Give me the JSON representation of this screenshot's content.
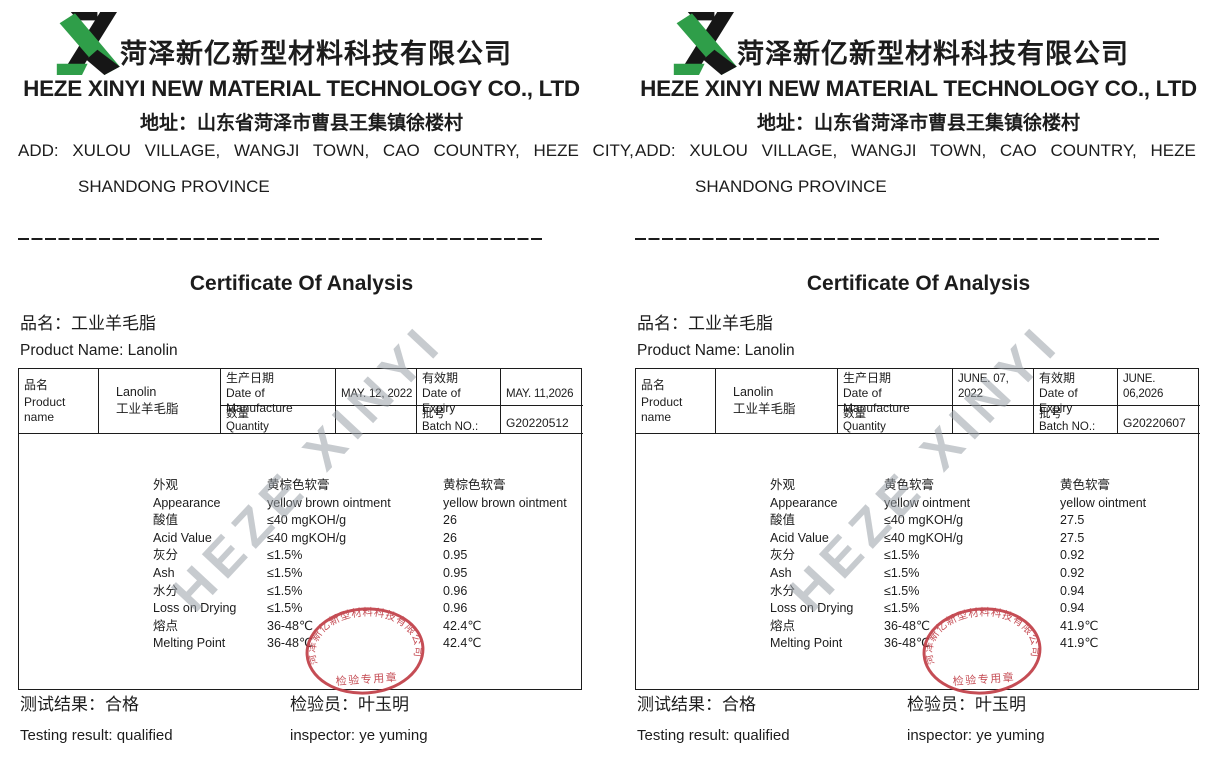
{
  "colors": {
    "ink": "#1c1c1c",
    "stamp_red": "#bf3a43",
    "logo_green": "#2f9e49",
    "logo_black": "#161616",
    "watermark_gray": "#9ba1a8"
  },
  "watermark_text": "HEZE XINYI",
  "stamp": {
    "ring_text": "菏泽新亿新型材料科技有限公司",
    "bottom_text": "检验专用章"
  },
  "certs": [
    {
      "header": {
        "company_cn": "菏泽新亿新型材料科技有限公司",
        "company_en": "HEZE XINYI NEW MATERIAL TECHNOLOGY CO., LTD",
        "address_cn": "地址：山东省菏泽市曹县王集镇徐楼村",
        "address_en1": "ADD: XULOU VILLAGE, WANGJI TOWN, CAO COUNTRY, HEZE CITY,",
        "address_en2": "SHANDONG PROVINCE"
      },
      "title": "Certificate Of Analysis",
      "product_line_cn": "品名：工业羊毛脂",
      "product_line_en": "Product Name:  Lanolin",
      "info": {
        "name_cn": "品名",
        "name_en": "Product name",
        "product_value_en": "Lanolin",
        "product_value_cn": "工业羊毛脂",
        "mfg_cn": "生产日期",
        "mfg_en": "Date of Manufacture",
        "mfg_value": "MAY. 12, 2022",
        "expiry_cn": "有效期",
        "expiry_en": "Date of Expiry",
        "expiry_value": "MAY. 11,2026",
        "qty_cn": "数量",
        "qty_en": "Quantity",
        "qty_value": "",
        "batch_cn": "批号",
        "batch_en": "Batch NO.:",
        "batch_value": "G20220512"
      },
      "results": [
        {
          "label": "外观",
          "spec": "黄棕色软膏",
          "value": "黄棕色软膏"
        },
        {
          "label": "Appearance",
          "spec": "yellow brown ointment",
          "value": "yellow brown ointment"
        },
        {
          "label": "酸值",
          "spec": "≤40 mgKOH/g",
          "value": "26"
        },
        {
          "label": "Acid Value",
          "spec": "≤40 mgKOH/g",
          "value": "26"
        },
        {
          "label": "灰分",
          "spec": "≤1.5%",
          "value": "0.95"
        },
        {
          "label": "Ash",
          "spec": "≤1.5%",
          "value": "0.95"
        },
        {
          "label": "水分",
          "spec": "≤1.5%",
          "value": "0.96"
        },
        {
          "label": "Loss on Drying",
          "spec": "≤1.5%",
          "value": "0.96"
        },
        {
          "label": "熔点",
          "spec": "36-48℃",
          "value": "42.4℃"
        },
        {
          "label": "Melting Point",
          "spec": "36-48℃",
          "value": "42.4℃"
        }
      ],
      "footer": {
        "result_cn": "测试结果：合格",
        "inspector_cn": "检验员：叶玉明",
        "result_en": "Testing result:  qualified",
        "inspector_en": "inspector:  ye yuming"
      }
    },
    {
      "header": {
        "company_cn": "菏泽新亿新型材料科技有限公司",
        "company_en": "HEZE XINYI NEW MATERIAL TECHNOLOGY CO., LTD",
        "address_cn": "地址：山东省菏泽市曹县王集镇徐楼村",
        "address_en1": "ADD: XULOU VILLAGE, WANGJI TOWN, CAO COUNTRY, HEZE CITY,",
        "address_en2": "SHANDONG PROVINCE"
      },
      "title": "Certificate Of Analysis",
      "product_line_cn": "品名：工业羊毛脂",
      "product_line_en": "Product Name:  Lanolin",
      "info": {
        "name_cn": "品名",
        "name_en": "Product name",
        "product_value_en": "Lanolin",
        "product_value_cn": "工业羊毛脂",
        "mfg_cn": "生产日期",
        "mfg_en": "Date of Manufacture",
        "mfg_value": "JUNE. 07, 2022",
        "expiry_cn": "有效期",
        "expiry_en": "Date of Expiry",
        "expiry_value": "JUNE. 06,2026",
        "qty_cn": "数量",
        "qty_en": "Quantity",
        "qty_value": "",
        "batch_cn": "批号",
        "batch_en": "Batch NO.:",
        "batch_value": "G20220607"
      },
      "results": [
        {
          "label": "外观",
          "spec": "黄色软膏",
          "value": "黄色软膏"
        },
        {
          "label": "Appearance",
          "spec": "yellow ointment",
          "value": "yellow ointment"
        },
        {
          "label": "酸值",
          "spec": "≤40 mgKOH/g",
          "value": "27.5"
        },
        {
          "label": "Acid Value",
          "spec": "≤40 mgKOH/g",
          "value": "27.5"
        },
        {
          "label": "灰分",
          "spec": "≤1.5%",
          "value": "0.92"
        },
        {
          "label": "Ash",
          "spec": "≤1.5%",
          "value": "0.92"
        },
        {
          "label": "水分",
          "spec": "≤1.5%",
          "value": "0.94"
        },
        {
          "label": "Loss on Drying",
          "spec": "≤1.5%",
          "value": "0.94"
        },
        {
          "label": "熔点",
          "spec": "36-48℃",
          "value": "41.9℃"
        },
        {
          "label": "Melting Point",
          "spec": "36-48℃",
          "value": "41.9℃"
        }
      ],
      "footer": {
        "result_cn": "测试结果：合格",
        "inspector_cn": "检验员：叶玉明",
        "result_en": "Testing result:  qualified",
        "inspector_en": "inspector:  ye yuming"
      }
    }
  ]
}
